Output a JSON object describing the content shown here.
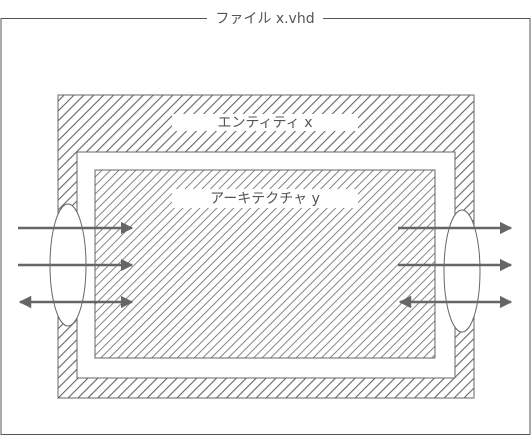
{
  "file": {
    "label": "ファイル x.vhd"
  },
  "entity": {
    "label": "エンティティ x"
  },
  "architecture": {
    "label": "アーキテクチャ y"
  },
  "colors": {
    "frame": "#555555",
    "hatch": "#666666",
    "arrow": "#666666",
    "background": "#ffffff"
  },
  "ports": {
    "left": [
      "in",
      "in",
      "inout"
    ],
    "right": [
      "out",
      "out",
      "inout"
    ]
  }
}
